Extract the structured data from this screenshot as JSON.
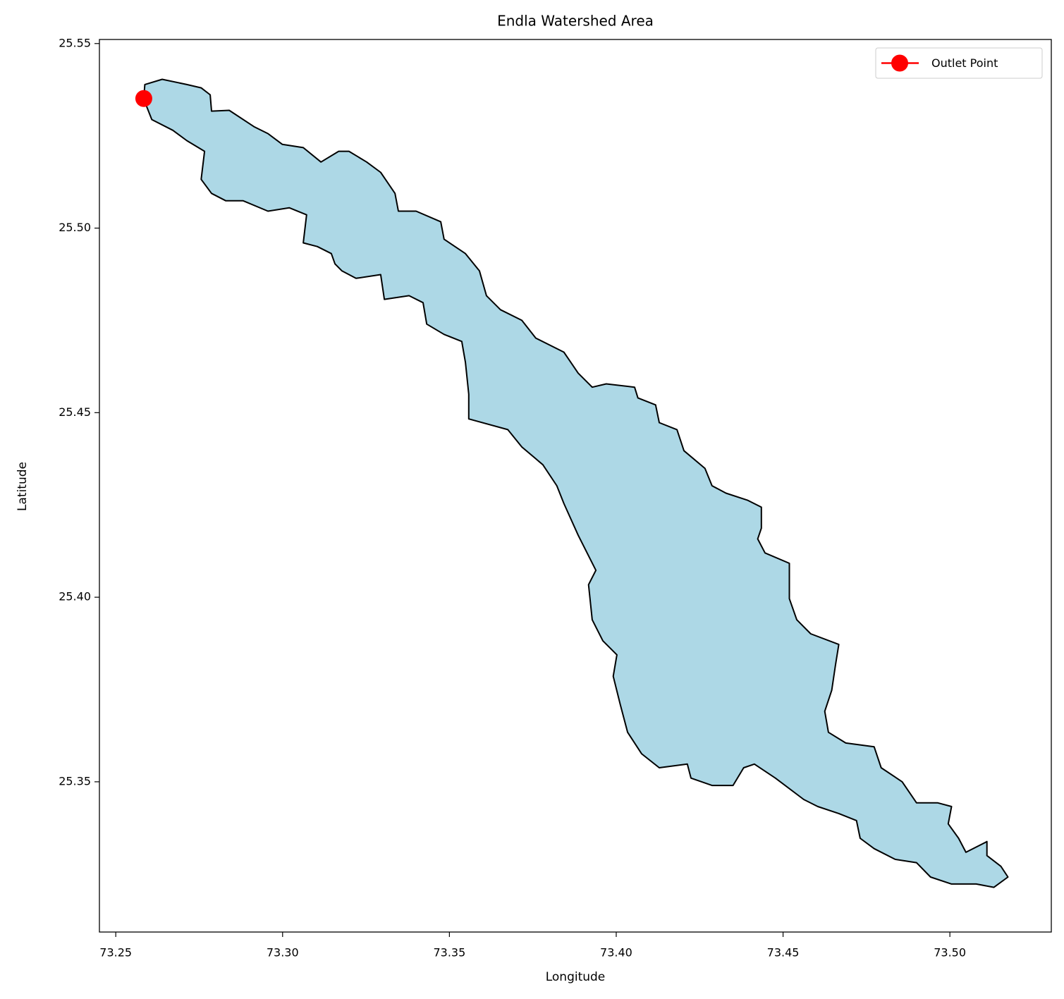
{
  "chart_data": {
    "type": "map",
    "title": "Endla Watershed Area",
    "x_label": "Longitude",
    "y_label": "Latitude",
    "xlim": [
      73.2451,
      73.5304
    ],
    "ylim": [
      25.3093,
      25.5511
    ],
    "xticks": [
      73.25,
      {
        "value": 73.3,
        "label": "73.30"
      },
      73.35,
      {
        "value": 73.4,
        "label": "73.40"
      },
      73.45,
      {
        "value": 73.5,
        "label": "73.50"
      }
    ],
    "yticks": [
      {
        "value": 25.35,
        "label": "25.35"
      },
      {
        "value": 25.4,
        "label": "25.40"
      },
      {
        "value": 25.45,
        "label": "25.45"
      },
      {
        "value": 25.5,
        "label": "25.50"
      },
      {
        "value": 25.55,
        "label": "25.55"
      }
    ],
    "polygon": {
      "fill": "#add8e6",
      "edgecolor": "#000000",
      "x": [
        73.2584,
        73.2587,
        73.2639,
        73.2713,
        73.2756,
        73.2783,
        73.2787,
        73.284,
        73.2914,
        73.2956,
        73.2999,
        73.3062,
        73.3115,
        73.3168,
        73.3199,
        73.3252,
        73.3294,
        73.3337,
        73.3347,
        73.34,
        73.3474,
        73.3484,
        73.3548,
        73.359,
        73.3611,
        73.3653,
        73.3717,
        73.3759,
        73.3843,
        73.3886,
        73.3928,
        73.397,
        73.4055,
        73.4065,
        73.4118,
        73.4129,
        73.4182,
        73.4203,
        73.4266,
        73.4287,
        73.4329,
        73.4393,
        73.4435,
        73.4435,
        73.4424,
        73.4446,
        73.4519,
        73.4519,
        73.4541,
        73.4583,
        73.4667,
        73.4657,
        73.4646,
        73.4625,
        73.4636,
        73.4688,
        73.4773,
        73.4794,
        73.4857,
        73.49,
        73.4963,
        73.5005,
        73.4995,
        73.5026,
        73.5048,
        73.5111,
        73.5111,
        73.5153,
        73.5174,
        73.5132,
        73.5079,
        73.5005,
        73.4942,
        73.49,
        73.4836,
        73.4773,
        73.4731,
        73.472,
        73.4667,
        73.4604,
        73.4562,
        73.4477,
        73.4414,
        73.4382,
        73.435,
        73.4287,
        73.4224,
        73.4213,
        73.4129,
        73.4076,
        73.4034,
        73.4012,
        73.3991,
        73.4002,
        73.396,
        73.3928,
        73.3917,
        73.3939,
        73.3886,
        73.3843,
        73.3822,
        73.378,
        73.3717,
        73.3675,
        73.3558,
        73.3558,
        73.3548,
        73.3537,
        73.3484,
        73.3432,
        73.3421,
        73.3379,
        73.3305,
        73.3294,
        73.322,
        73.3178,
        73.3157,
        73.3146,
        73.3104,
        73.3062,
        73.3072,
        73.302,
        73.2956,
        73.2882,
        73.283,
        73.2787,
        73.2756,
        73.2766,
        73.2713,
        73.2671,
        73.2608,
        73.2587
      ],
      "y": [
        25.5351,
        25.5389,
        25.5403,
        25.5389,
        25.538,
        25.5361,
        25.5317,
        25.5319,
        25.5275,
        25.5256,
        25.5227,
        25.5218,
        25.5179,
        25.5208,
        25.5208,
        25.5179,
        25.5151,
        25.5094,
        25.5046,
        25.5046,
        25.5017,
        25.497,
        25.4931,
        25.4884,
        25.4817,
        25.4779,
        25.475,
        25.4702,
        25.4664,
        25.4607,
        25.4569,
        25.4578,
        25.4569,
        25.454,
        25.4521,
        25.4473,
        25.4454,
        25.4397,
        25.4349,
        25.4302,
        25.4282,
        25.4263,
        25.4244,
        25.4187,
        25.4158,
        25.412,
        25.4092,
        25.3996,
        25.3939,
        25.3901,
        25.3872,
        25.3815,
        25.3748,
        25.3691,
        25.3634,
        25.3605,
        25.3595,
        25.3538,
        25.35,
        25.3443,
        25.3443,
        25.3433,
        25.3386,
        25.3347,
        25.3309,
        25.3338,
        25.33,
        25.3271,
        25.3242,
        25.3214,
        25.3223,
        25.3223,
        25.3242,
        25.3281,
        25.329,
        25.3319,
        25.3347,
        25.3395,
        25.3414,
        25.3433,
        25.3452,
        25.351,
        25.3548,
        25.3538,
        25.349,
        25.349,
        25.351,
        25.3548,
        25.3538,
        25.3576,
        25.3634,
        25.371,
        25.3786,
        25.3844,
        25.3882,
        25.3939,
        25.4034,
        25.4073,
        25.4168,
        25.4254,
        25.4302,
        25.4359,
        25.4407,
        25.4454,
        25.4483,
        25.455,
        25.4636,
        25.4693,
        25.4712,
        25.474,
        25.4798,
        25.4817,
        25.4807,
        25.4874,
        25.4864,
        25.4884,
        25.4903,
        25.4931,
        25.495,
        25.496,
        25.5036,
        25.5055,
        25.5046,
        25.5074,
        25.5074,
        25.5094,
        25.5132,
        25.5208,
        25.5237,
        25.5265,
        25.5294,
        25.5342
      ]
    },
    "points": [
      {
        "name": "Outlet Point",
        "color": "#ff0000",
        "x": [
          73.2584
        ],
        "y": [
          25.5351
        ]
      }
    ],
    "legend": "upper right"
  }
}
